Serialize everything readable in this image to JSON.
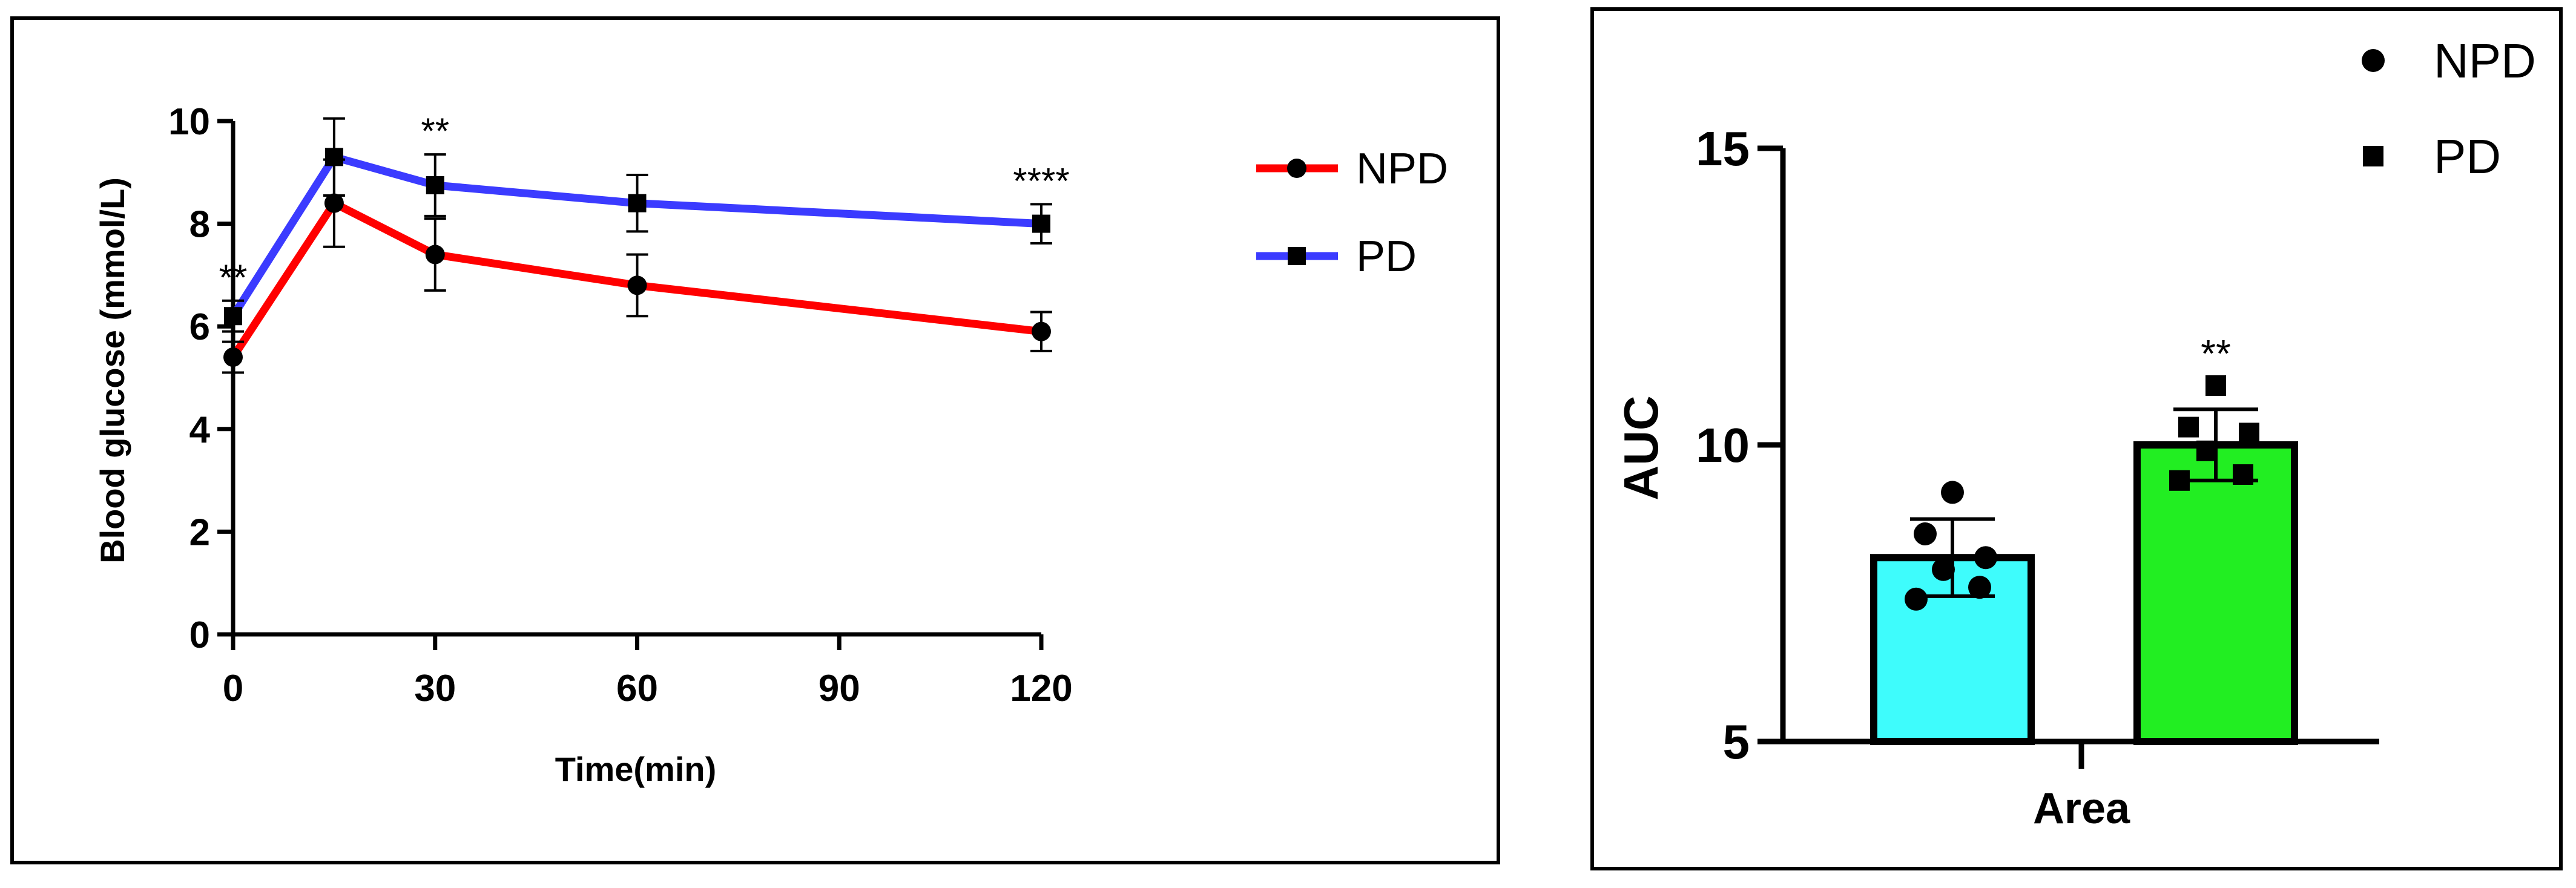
{
  "colors": {
    "frame": "#000000",
    "npd_line": "#ff0000",
    "pd_line": "#3b3bff",
    "npd_bar": "#3efcfc",
    "pd_bar": "#22ee22",
    "marker": "#000000"
  },
  "chart_data": [
    {
      "type": "line",
      "xlabel": "Time(min)",
      "ylabel": "Blood glucose (mmol/L)",
      "xlim": [
        0,
        120
      ],
      "ylim": [
        0,
        10
      ],
      "x_ticks": [
        "0",
        "30",
        "60",
        "90",
        "120"
      ],
      "y_ticks": [
        "0",
        "2",
        "4",
        "6",
        "8",
        "10"
      ],
      "x": [
        0,
        15,
        30,
        60,
        120
      ],
      "legend_position": "top-right",
      "series": [
        {
          "name": "NPD",
          "marker": "circle",
          "color": "#ff0000",
          "values": [
            5.4,
            8.4,
            7.4,
            6.8,
            5.9
          ],
          "errors": [
            0.3,
            0.85,
            0.7,
            0.6,
            0.38
          ]
        },
        {
          "name": "PD",
          "marker": "square",
          "color": "#3b3bff",
          "values": [
            6.2,
            9.3,
            8.75,
            8.4,
            8.0
          ],
          "errors": [
            0.3,
            0.75,
            0.6,
            0.55,
            0.38
          ]
        }
      ],
      "annotations": [
        {
          "x": 0,
          "text": "**"
        },
        {
          "x": 30,
          "text": "**"
        },
        {
          "x": 120,
          "text": "****"
        }
      ]
    },
    {
      "type": "bar",
      "xlabel": "Area",
      "ylabel": "AUC",
      "ylim": [
        5,
        15
      ],
      "y_ticks": [
        "5",
        "10",
        "15"
      ],
      "legend_position": "top-right",
      "series": [
        {
          "name": "NPD",
          "marker": "circle",
          "color": "#3efcfc",
          "mean": 8.1,
          "sd": 0.65,
          "points": [
            9.2,
            8.5,
            8.1,
            7.9,
            7.6,
            7.4
          ]
        },
        {
          "name": "PD",
          "marker": "square",
          "color": "#22ee22",
          "mean": 10.0,
          "sd": 0.6,
          "points": [
            11.0,
            10.3,
            10.2,
            9.9,
            9.5,
            9.4
          ]
        }
      ],
      "annotations": [
        {
          "series": "PD",
          "text": "**"
        }
      ]
    }
  ]
}
